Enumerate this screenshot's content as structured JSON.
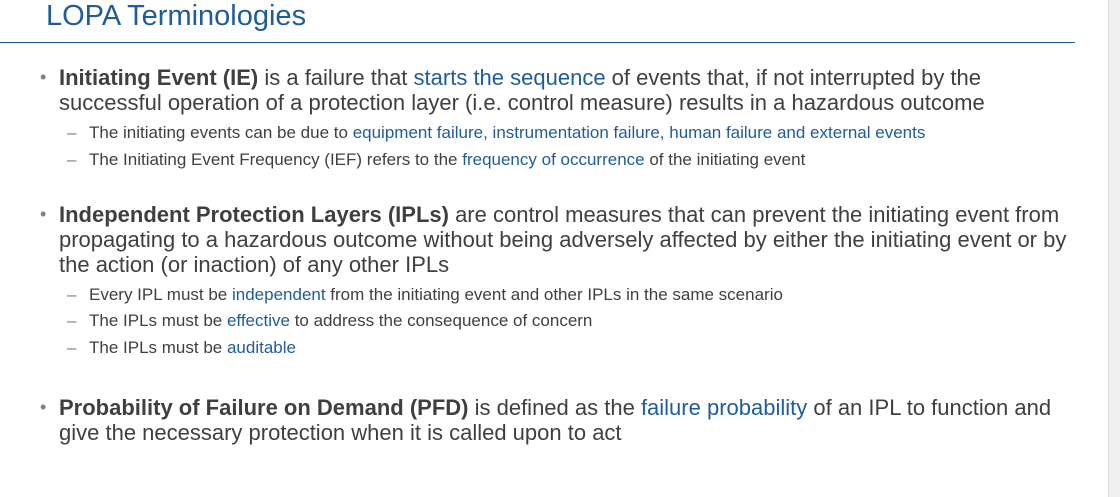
{
  "title": "LOPA Terminologies",
  "sections": [
    {
      "term": "Initiating Event (IE)",
      "text_a": " is a failure that ",
      "highlight": "starts the sequence",
      "text_b": " of events that, if not interrupted by the successful operation of a protection layer (i.e. control measure) results in a hazardous outcome",
      "subs": [
        {
          "pre": "The initiating events can be due to ",
          "highlight": "equipment failure, instrumentation failure, human failure and external events",
          "post": ""
        },
        {
          "pre": "The Initiating Event Frequency (IEF) refers to the ",
          "highlight": "frequency of occurrence",
          "post": " of the initiating event"
        }
      ]
    },
    {
      "term": "Independent Protection Layers (IPLs)",
      "text_a": " are control measures that can prevent the initiating event from propagating to a hazardous outcome without being adversely affected by either the initiating event or by the action (or inaction) of any other IPLs",
      "highlight": "",
      "text_b": "",
      "subs": [
        {
          "pre": "Every IPL must be ",
          "highlight": "independent",
          "post": " from the initiating event and other IPLs in the same scenario"
        },
        {
          "pre": "The IPLs must be ",
          "highlight": "effective",
          "post": " to address the consequence of concern"
        },
        {
          "pre": "The IPLs must be ",
          "highlight": "auditable",
          "post": ""
        }
      ]
    },
    {
      "term": "Probability of Failure on Demand (PFD)",
      "text_a": " is defined as the ",
      "highlight": "failure probability",
      "text_b": " of an IPL to function and give the necessary protection when it is called upon to act",
      "subs": []
    }
  ],
  "colors": {
    "title": "#1f5c99",
    "highlight": "#1f5c99",
    "body_text": "#3f3f3f",
    "bullet_marker": "#7f7f7f"
  }
}
